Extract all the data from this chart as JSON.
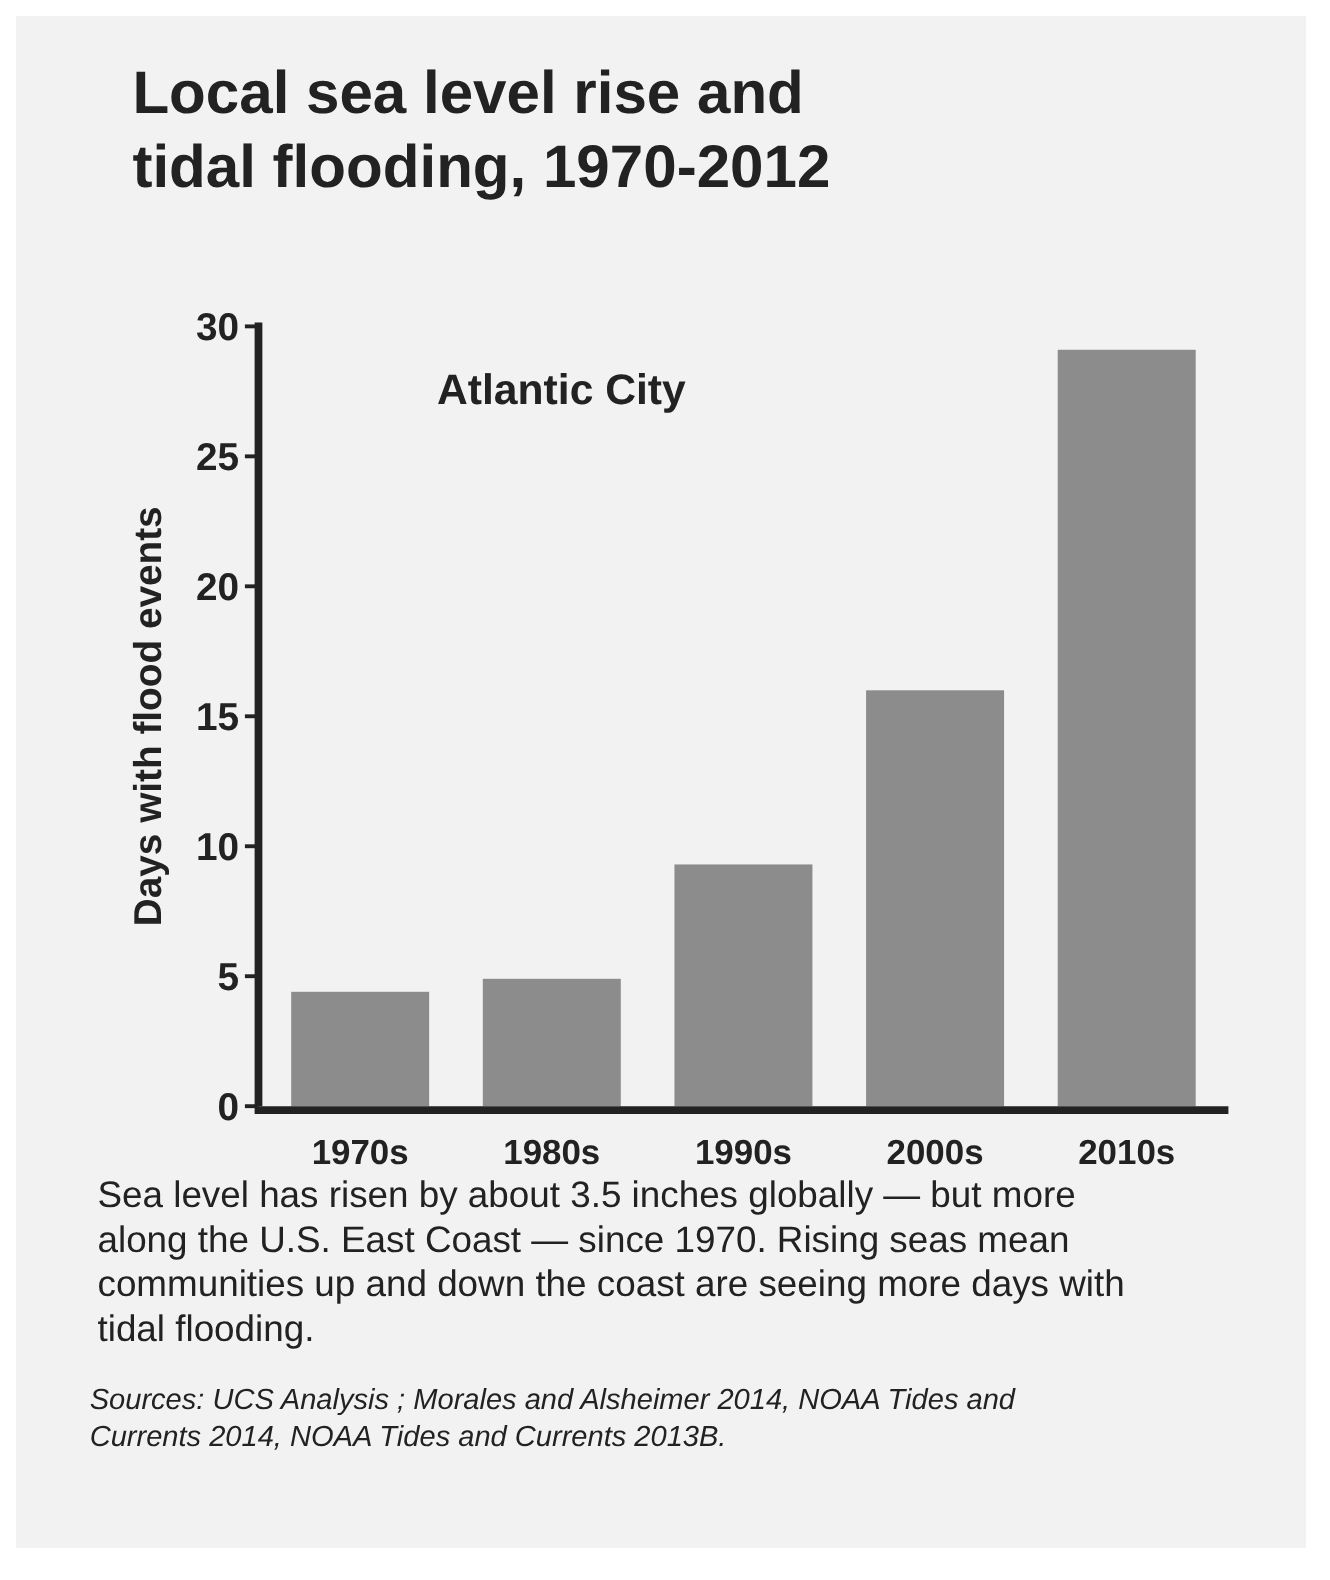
{
  "chart_data": {
    "type": "bar",
    "title": "Local sea level rise and tidal flooding, 1970-2012",
    "subtitle": "Atlantic City",
    "ylabel": "Days with flood events",
    "categories": [
      "1970s",
      "1980s",
      "1990s",
      "2000s",
      "2010s"
    ],
    "values": [
      4.4,
      4.9,
      9.3,
      16.0,
      29.1
    ],
    "color": "#8c8c8c",
    "ylim": [
      0,
      30
    ],
    "yticks": [
      0,
      5,
      10,
      15,
      20,
      25,
      30
    ],
    "grid": false,
    "annotations": [
      "Sea level has risen by about 3.5 inches globally — but more along the U.S. East Coast — since 1970. Rising seas mean communities up and down the coast are seeing more days with tidal flooding.",
      "Sources: UCS Analysis ; Morales and Alsheimer 2014, NOAA Tides and Currents 2014, NOAA Tides and Currents 2013B."
    ]
  }
}
